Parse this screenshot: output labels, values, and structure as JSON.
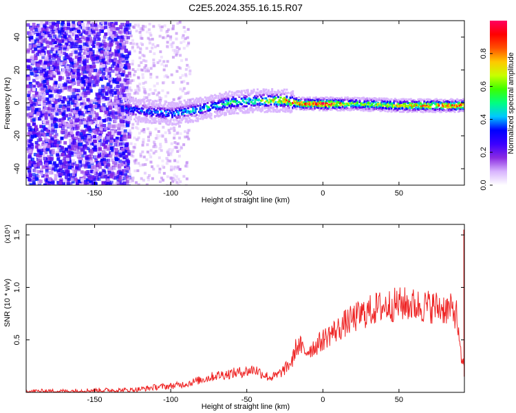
{
  "figure_title": "C2E5.2024.355.16.15.R07",
  "chart_data": [
    {
      "type": "heatmap",
      "title": "",
      "xlabel": "Height of straight line (km)",
      "ylabel": "Frequency (Hz)",
      "xlim": [
        -195,
        93
      ],
      "ylim": [
        -50,
        50
      ],
      "xticks": [
        -150,
        -100,
        -50,
        0,
        50
      ],
      "yticks": [
        -40,
        -20,
        0,
        20,
        40
      ],
      "colorbar": {
        "label": "Normalized spectral amplitude",
        "range": [
          0,
          1
        ],
        "ticks": [
          "0.0",
          "0.2",
          "0.4",
          "0.6",
          "0.8"
        ],
        "tick_values": [
          0.0,
          0.2,
          0.4,
          0.6,
          0.8
        ],
        "colormap": [
          "#ffffff",
          "#d8b4fe",
          "#8a2be2",
          "#3b00ff",
          "#0000ff",
          "#00c8ff",
          "#00ff80",
          "#3cff00",
          "#c8ff00",
          "#ffc800",
          "#ff5000",
          "#ff0000",
          "#ff0060"
        ]
      },
      "ridge": {
        "description_points": [
          {
            "x": -130,
            "y": -3,
            "amp": 0.35
          },
          {
            "x": -100,
            "y": -6,
            "amp": 0.4
          },
          {
            "x": -80,
            "y": -3,
            "amp": 0.45
          },
          {
            "x": -60,
            "y": 1,
            "amp": 0.5
          },
          {
            "x": -40,
            "y": 2,
            "amp": 0.6
          },
          {
            "x": -25,
            "y": 2,
            "amp": 0.8
          },
          {
            "x": -15,
            "y": 0,
            "amp": 0.85
          },
          {
            "x": 0,
            "y": 0,
            "amp": 0.95
          },
          {
            "x": 20,
            "y": 0,
            "amp": 0.6
          },
          {
            "x": 50,
            "y": -1,
            "amp": 0.7
          },
          {
            "x": 93,
            "y": -1,
            "amp": 0.85
          }
        ]
      }
    },
    {
      "type": "line",
      "title": "",
      "xlabel": "Height of straight line (km)",
      "ylabel": "SNR (10 * v/v)",
      "y_multiplier": "(x10⁴)",
      "xlim": [
        -195,
        93
      ],
      "ylim": [
        0,
        1.6
      ],
      "xticks": [
        -150,
        -100,
        -50,
        0,
        50
      ],
      "yticks": [
        "0.5",
        "1.0",
        "1.5"
      ],
      "ytick_values": [
        0.5,
        1.0,
        1.5
      ],
      "color": "#ee2222",
      "series": [
        {
          "x": [
            -195,
            -170,
            -150,
            -130,
            -120,
            -110,
            -100,
            -90,
            -80,
            -70,
            -60,
            -50,
            -45,
            -40,
            -35,
            -30,
            -25,
            -20,
            -18,
            -15,
            -12,
            -10,
            -5,
            0,
            5,
            10,
            15,
            20,
            25,
            30,
            35,
            40,
            45,
            50,
            55,
            60,
            65,
            70,
            75,
            80,
            85,
            88,
            90,
            92,
            93
          ],
          "y": [
            0.01,
            0.01,
            0.02,
            0.02,
            0.03,
            0.05,
            0.06,
            0.08,
            0.12,
            0.16,
            0.18,
            0.2,
            0.22,
            0.18,
            0.14,
            0.16,
            0.22,
            0.3,
            0.42,
            0.45,
            0.38,
            0.4,
            0.44,
            0.5,
            0.56,
            0.6,
            0.66,
            0.7,
            0.74,
            0.77,
            0.8,
            0.82,
            0.83,
            0.84,
            0.84,
            0.83,
            0.82,
            0.82,
            0.81,
            0.8,
            0.78,
            0.74,
            0.4,
            0.25,
            0.35
          ]
        }
      ]
    }
  ]
}
